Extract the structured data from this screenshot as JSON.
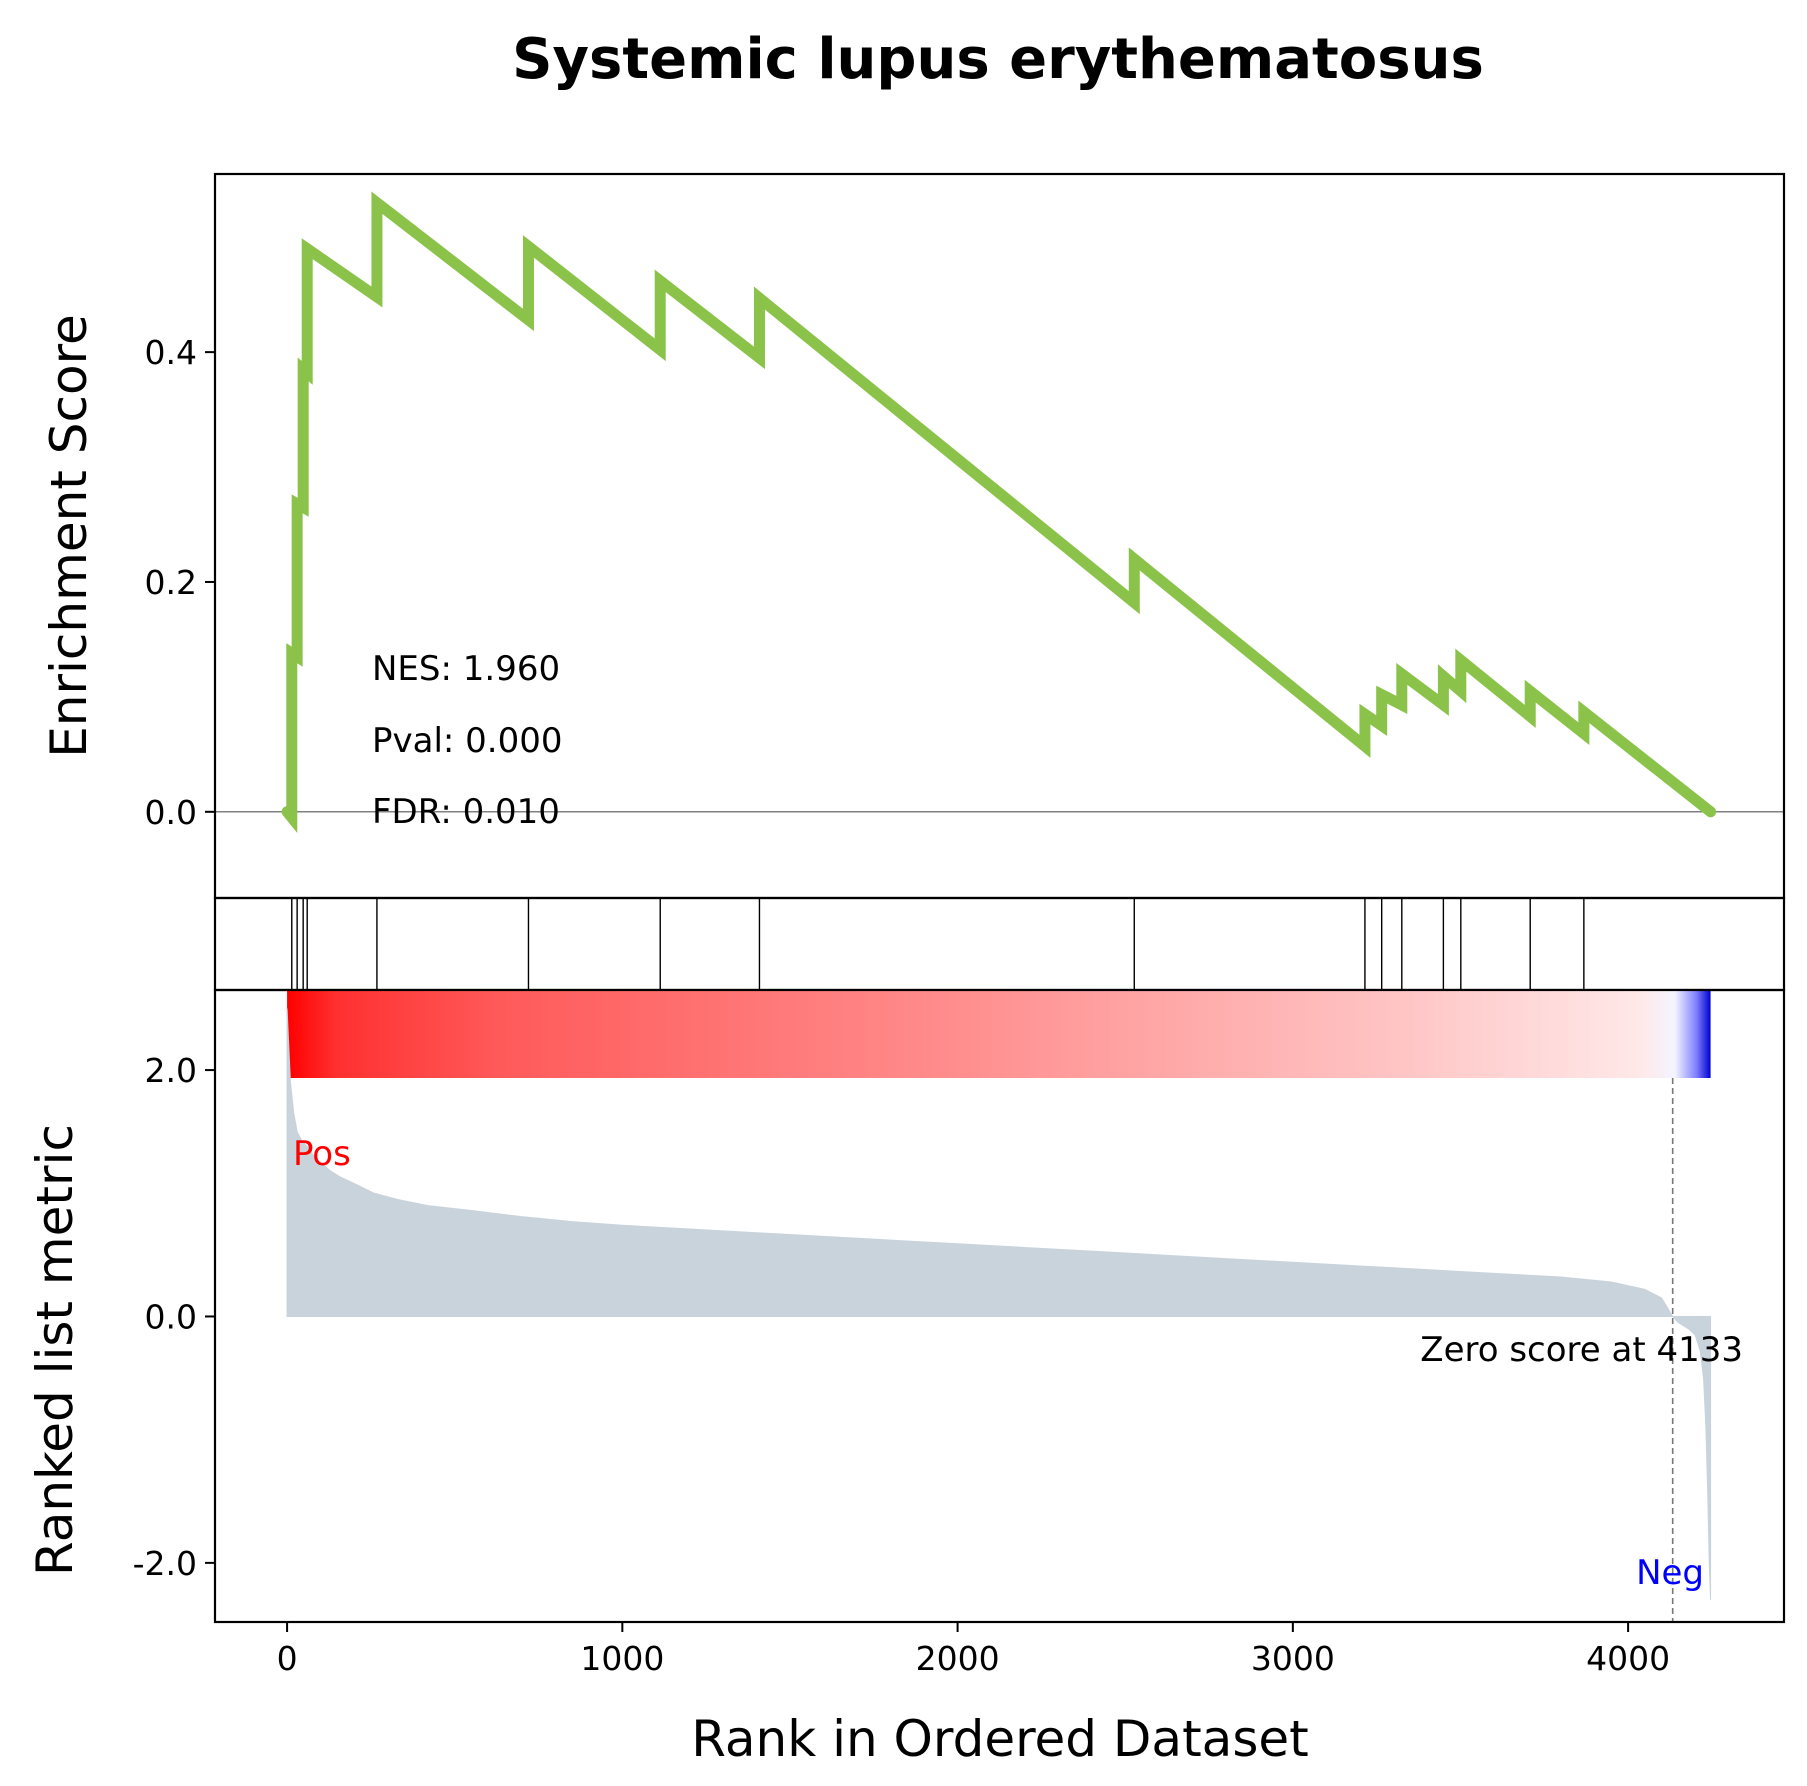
{
  "chart_data": {
    "type": "line",
    "title": "Systemic lupus erythematosus",
    "xlabel": "Rank in Ordered Dataset",
    "ylabel_top": "Enrichment Score",
    "ylabel_bottom": "Ranked list metric",
    "xlim": [
      -215,
      4465
    ],
    "x_ticks": [
      0,
      1000,
      2000,
      3000,
      4000
    ],
    "x_tick_labels": [
      "0",
      "1000",
      "2000",
      "3000",
      "4000"
    ],
    "es_ylim": [
      -0.075,
      0.555
    ],
    "es_y_ticks": [
      0.0,
      0.2,
      0.4
    ],
    "es_y_tick_labels": [
      "0.0",
      "0.2",
      "0.4"
    ],
    "metric_ylim": [
      -2.48,
      2.65
    ],
    "metric_y_ticks": [
      -2.0,
      0.0,
      2.0
    ],
    "metric_y_tick_labels": [
      "-2.0",
      "0.0",
      "2.0"
    ],
    "annotations": {
      "nes": "NES: 1.960",
      "pval": "Pval: 0.000",
      "fdr": "FDR: 0.010",
      "pos_label": "Pos",
      "neg_label": "Neg",
      "zero_score": "Zero score at 4133"
    },
    "zero_score_rank": 4133,
    "n_genes": 4246,
    "hits": [
      14,
      30,
      48,
      60,
      268,
      720,
      1113,
      1409,
      2527,
      3215,
      3265,
      3325,
      3449,
      3501,
      3708,
      3868
    ],
    "running_es": {
      "x": [
        0,
        14,
        14,
        30,
        30,
        48,
        48,
        60,
        60,
        268,
        268,
        720,
        720,
        1113,
        1113,
        1409,
        1409,
        2527,
        2527,
        3215,
        3215,
        3265,
        3265,
        3325,
        3325,
        3449,
        3449,
        3501,
        3501,
        3708,
        3708,
        3868,
        3868,
        4246
      ],
      "y": [
        0.0,
        -0.005,
        0.138,
        0.135,
        0.268,
        0.265,
        0.385,
        0.382,
        0.49,
        0.448,
        0.53,
        0.428,
        0.492,
        0.402,
        0.462,
        0.395,
        0.447,
        0.182,
        0.22,
        0.057,
        0.085,
        0.075,
        0.102,
        0.093,
        0.12,
        0.093,
        0.118,
        0.105,
        0.132,
        0.083,
        0.105,
        0.068,
        0.087,
        0.0
      ]
    },
    "ranked_metric": {
      "x": [
        0,
        5,
        10,
        20,
        30,
        45,
        60,
        80,
        100,
        130,
        160,
        200,
        260,
        330,
        420,
        550,
        700,
        850,
        1000,
        1200,
        1400,
        1600,
        1800,
        2000,
        2200,
        2400,
        2600,
        2800,
        3000,
        3200,
        3400,
        3600,
        3800,
        3950,
        4050,
        4100,
        4133,
        4150,
        4180,
        4200,
        4215,
        4225,
        4232,
        4238,
        4242,
        4246
      ],
      "y": [
        2.5,
        2.2,
        1.9,
        1.65,
        1.5,
        1.42,
        1.38,
        1.3,
        1.25,
        1.18,
        1.13,
        1.08,
        1.0,
        0.95,
        0.9,
        0.86,
        0.81,
        0.77,
        0.74,
        0.71,
        0.68,
        0.65,
        0.62,
        0.59,
        0.56,
        0.53,
        0.5,
        0.47,
        0.44,
        0.41,
        0.38,
        0.35,
        0.32,
        0.28,
        0.22,
        0.15,
        0.0,
        -0.05,
        -0.1,
        -0.15,
        -0.28,
        -0.5,
        -0.9,
        -1.5,
        -2.0,
        -2.3
      ]
    },
    "colors": {
      "es_line": "#8bc34a",
      "metric_fill": "#c9d3dc",
      "pos_color": "#ff0000",
      "neg_color": "#0000ff",
      "axis": "#000000",
      "zero_line": "#808080"
    }
  }
}
